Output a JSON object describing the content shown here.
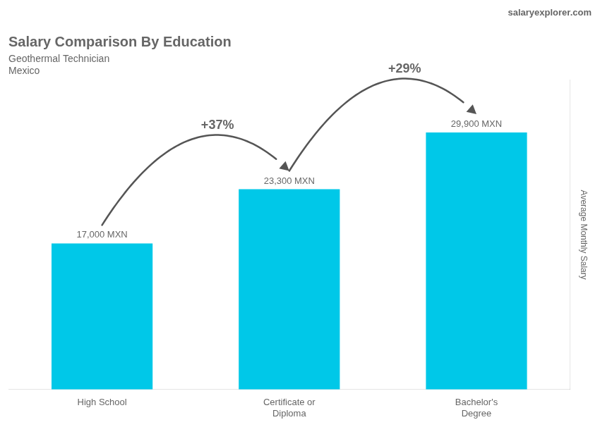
{
  "chart_data": {
    "type": "bar",
    "title": "Salary Comparison By Education",
    "subtitle": [
      "Geothermal Technician",
      "Mexico"
    ],
    "source": "salaryexplorer.com",
    "ylabel": "Average Monthly Salary",
    "categories": [
      "High School",
      "Certificate or\nDiploma",
      "Bachelor's\nDegree"
    ],
    "values": [
      17000,
      23300,
      29900
    ],
    "value_labels": [
      "17,000 MXN",
      "23,300 MXN",
      "29,900 MXN"
    ],
    "data_labels": true,
    "color": "#00c8e8",
    "ylim": [
      0,
      36000
    ],
    "tick_labels": "x",
    "grid": false,
    "annotations": [
      "+37%",
      "+29%"
    ]
  }
}
